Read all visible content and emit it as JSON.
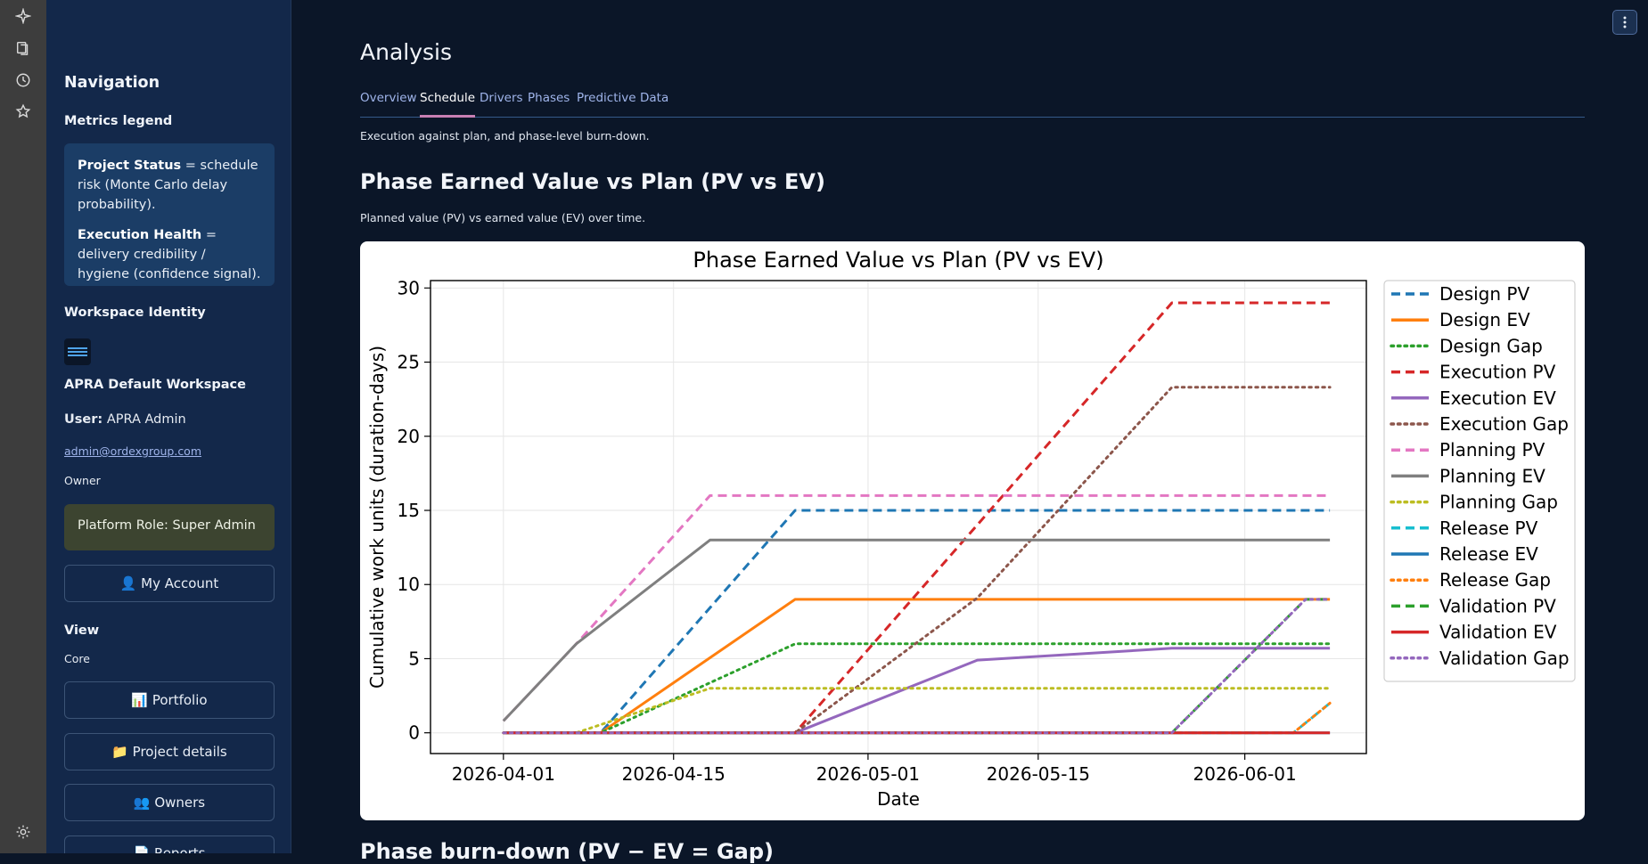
{
  "rail": {
    "icons": [
      "sparkle-icon",
      "documents-icon",
      "history-icon",
      "star-icon",
      "gear-icon"
    ]
  },
  "sidebar": {
    "navigation_title": "Navigation",
    "metrics_legend_title": "Metrics legend",
    "legend": {
      "status_term": "Project Status",
      "status_text": "= schedule risk (Monte Carlo delay probability).",
      "health_term": "Execution Health",
      "health_text": "= delivery credibility / hygiene (confidence signal)."
    },
    "workspace_identity_title": "Workspace Identity",
    "workspace_name": "APRA Default Workspace",
    "user_label": "User:",
    "user_name": "APRA Admin",
    "email": "admin@ordexgroup.com",
    "role": "Owner",
    "platform_role": "Platform Role: Super Admin",
    "my_account_label": "👤 My Account",
    "view_title": "View",
    "view_mode": "Core",
    "nav_buttons": [
      {
        "label": "📊 Portfolio"
      },
      {
        "label": "📁 Project details"
      },
      {
        "label": "👥 Owners"
      },
      {
        "label": "📄 Reports"
      }
    ]
  },
  "main": {
    "page_title": "Analysis",
    "tabs": [
      {
        "label": "Overview",
        "active": false
      },
      {
        "label": "Schedule",
        "active": true
      },
      {
        "label": "Drivers",
        "active": false
      },
      {
        "label": "Phases",
        "active": false
      },
      {
        "label": "Predictive",
        "active": false
      },
      {
        "label": "Data",
        "active": false
      }
    ],
    "tab_description": "Execution against plan, and phase-level burn-down.",
    "section_title": "Phase Earned Value vs Plan (PV vs EV)",
    "section_caption": "Planned value (PV) vs earned value (EV) over time.",
    "next_section_title": "Phase burn-down (PV − EV = Gap)"
  },
  "chart_data": {
    "type": "line",
    "title": "Phase Earned Value vs Plan (PV vs EV)",
    "xlabel": "Date",
    "ylabel": "Cumulative work units (duration-days)",
    "xlim": [
      "2026-03-26",
      "2026-06-11"
    ],
    "ylim": [
      -1.4,
      30.5
    ],
    "x_ticks": [
      "2026-04-01",
      "2026-04-15",
      "2026-05-01",
      "2026-05-15",
      "2026-06-01"
    ],
    "y_ticks": [
      0,
      5,
      10,
      15,
      20,
      25,
      30
    ],
    "grid": true,
    "legend_position": "outside-right",
    "series": [
      {
        "name": "Design PV",
        "color": "#1f77b4",
        "style": "dashed",
        "points": [
          [
            "2026-04-01",
            0
          ],
          [
            "2026-04-09",
            0
          ],
          [
            "2026-04-25",
            15
          ],
          [
            "2026-06-08",
            15
          ]
        ]
      },
      {
        "name": "Design EV",
        "color": "#ff7f0e",
        "style": "solid",
        "points": [
          [
            "2026-04-01",
            0
          ],
          [
            "2026-04-09",
            0
          ],
          [
            "2026-04-25",
            9
          ],
          [
            "2026-06-08",
            9
          ]
        ]
      },
      {
        "name": "Design Gap",
        "color": "#2ca02c",
        "style": "dotted",
        "points": [
          [
            "2026-04-01",
            0
          ],
          [
            "2026-04-09",
            0
          ],
          [
            "2026-04-25",
            6
          ],
          [
            "2026-06-08",
            6
          ]
        ]
      },
      {
        "name": "Execution PV",
        "color": "#d62728",
        "style": "dashed",
        "points": [
          [
            "2026-04-01",
            0
          ],
          [
            "2026-04-25",
            0
          ],
          [
            "2026-05-26",
            29
          ],
          [
            "2026-06-08",
            29
          ]
        ]
      },
      {
        "name": "Execution EV",
        "color": "#9467bd",
        "style": "solid",
        "points": [
          [
            "2026-04-01",
            0
          ],
          [
            "2026-04-25",
            0
          ],
          [
            "2026-05-10",
            4.9
          ],
          [
            "2026-05-26",
            5.7
          ],
          [
            "2026-06-08",
            5.7
          ]
        ]
      },
      {
        "name": "Execution Gap",
        "color": "#8c564b",
        "style": "dotted",
        "points": [
          [
            "2026-04-01",
            0
          ],
          [
            "2026-04-25",
            0
          ],
          [
            "2026-05-10",
            9.1
          ],
          [
            "2026-05-26",
            23.3
          ],
          [
            "2026-06-08",
            23.3
          ]
        ]
      },
      {
        "name": "Planning PV",
        "color": "#e377c2",
        "style": "dashed",
        "points": [
          [
            "2026-04-01",
            0.8
          ],
          [
            "2026-04-07",
            6
          ],
          [
            "2026-04-18",
            16
          ],
          [
            "2026-06-08",
            16
          ]
        ]
      },
      {
        "name": "Planning EV",
        "color": "#7f7f7f",
        "style": "solid",
        "points": [
          [
            "2026-04-01",
            0.8
          ],
          [
            "2026-04-07",
            6
          ],
          [
            "2026-04-18",
            13
          ],
          [
            "2026-06-08",
            13
          ]
        ]
      },
      {
        "name": "Planning Gap",
        "color": "#bcbd22",
        "style": "dotted",
        "points": [
          [
            "2026-04-01",
            0
          ],
          [
            "2026-04-07",
            0
          ],
          [
            "2026-04-18",
            3
          ],
          [
            "2026-06-08",
            3
          ]
        ]
      },
      {
        "name": "Release PV",
        "color": "#17becf",
        "style": "dashed",
        "points": [
          [
            "2026-04-01",
            0
          ],
          [
            "2026-06-05",
            0
          ],
          [
            "2026-06-08",
            2
          ]
        ]
      },
      {
        "name": "Release EV",
        "color": "#1f77b4",
        "style": "solid",
        "points": [
          [
            "2026-04-01",
            0
          ],
          [
            "2026-06-08",
            0
          ]
        ]
      },
      {
        "name": "Release Gap",
        "color": "#ff7f0e",
        "style": "dotted",
        "points": [
          [
            "2026-04-01",
            0
          ],
          [
            "2026-06-05",
            0
          ],
          [
            "2026-06-08",
            2
          ]
        ]
      },
      {
        "name": "Validation PV",
        "color": "#2ca02c",
        "style": "dashed",
        "points": [
          [
            "2026-04-01",
            0
          ],
          [
            "2026-05-26",
            0
          ],
          [
            "2026-06-06",
            9
          ],
          [
            "2026-06-08",
            9
          ]
        ]
      },
      {
        "name": "Validation EV",
        "color": "#d62728",
        "style": "solid",
        "points": [
          [
            "2026-04-01",
            0
          ],
          [
            "2026-06-08",
            0
          ]
        ]
      },
      {
        "name": "Validation Gap",
        "color": "#9467bd",
        "style": "dotted",
        "points": [
          [
            "2026-04-01",
            0
          ],
          [
            "2026-05-26",
            0
          ],
          [
            "2026-06-06",
            9
          ],
          [
            "2026-06-08",
            9
          ]
        ]
      }
    ]
  }
}
